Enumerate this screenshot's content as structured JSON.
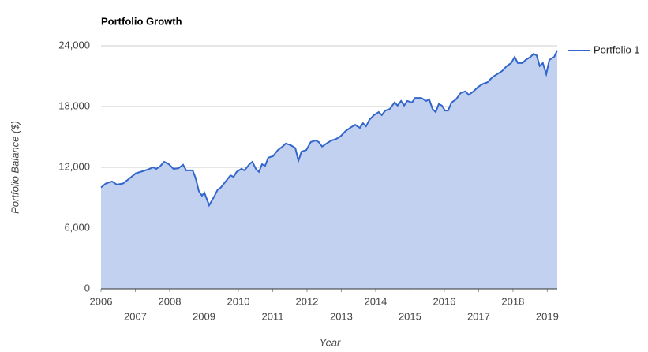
{
  "chart_data": {
    "type": "area",
    "title": "Portfolio Growth",
    "xlabel": "Year",
    "ylabel": "Portfolio Balance ($)",
    "x": [
      2006.0,
      2006.14,
      2006.32,
      2006.46,
      2006.64,
      2006.83,
      2007.01,
      2007.2,
      2007.38,
      2007.52,
      2007.61,
      2007.72,
      2007.84,
      2007.98,
      2008.11,
      2008.25,
      2008.39,
      2008.48,
      2008.67,
      2008.76,
      2008.85,
      2008.94,
      2009.01,
      2009.15,
      2009.31,
      2009.4,
      2009.49,
      2009.63,
      2009.77,
      2009.86,
      2009.95,
      2010.09,
      2010.18,
      2010.32,
      2010.41,
      2010.51,
      2010.6,
      2010.69,
      2010.78,
      2010.87,
      2011.01,
      2011.15,
      2011.29,
      2011.38,
      2011.52,
      2011.66,
      2011.75,
      2011.84,
      2011.98,
      2012.11,
      2012.25,
      2012.34,
      2012.44,
      2012.57,
      2012.71,
      2012.85,
      2012.99,
      2013.13,
      2013.26,
      2013.4,
      2013.54,
      2013.63,
      2013.72,
      2013.82,
      2013.95,
      2014.09,
      2014.18,
      2014.28,
      2014.41,
      2014.55,
      2014.64,
      2014.74,
      2014.83,
      2014.92,
      2015.06,
      2015.15,
      2015.33,
      2015.47,
      2015.56,
      2015.66,
      2015.75,
      2015.84,
      2015.93,
      2016.02,
      2016.11,
      2016.21,
      2016.34,
      2016.48,
      2016.62,
      2016.71,
      2016.85,
      2016.99,
      2017.13,
      2017.26,
      2017.4,
      2017.54,
      2017.68,
      2017.82,
      2017.95,
      2018.05,
      2018.14,
      2018.28,
      2018.37,
      2018.51,
      2018.6,
      2018.69,
      2018.78,
      2018.87,
      2018.97,
      2019.06,
      2019.2,
      2019.29
    ],
    "series": [
      {
        "name": "Portfolio 1",
        "color": "#3366cc",
        "fill": "#c2d1f0",
        "values": [
          10000,
          10400,
          10600,
          10300,
          10400,
          10900,
          11400,
          11600,
          11800,
          12000,
          11850,
          12100,
          12550,
          12300,
          11850,
          11900,
          12250,
          11700,
          11700,
          10900,
          9650,
          9200,
          9500,
          8250,
          9200,
          9800,
          10000,
          10600,
          11200,
          11050,
          11550,
          11850,
          11700,
          12300,
          12550,
          11850,
          11550,
          12300,
          12150,
          12950,
          13100,
          13700,
          14050,
          14350,
          14200,
          13900,
          12650,
          13550,
          13700,
          14500,
          14650,
          14500,
          14050,
          14350,
          14650,
          14800,
          15100,
          15600,
          15900,
          16200,
          15900,
          16350,
          16050,
          16700,
          17150,
          17450,
          17150,
          17600,
          17750,
          18400,
          18100,
          18550,
          18100,
          18550,
          18400,
          18850,
          18850,
          18550,
          18700,
          17750,
          17450,
          18250,
          18100,
          17600,
          17600,
          18400,
          18700,
          19350,
          19500,
          19150,
          19500,
          19950,
          20250,
          20400,
          20900,
          21200,
          21500,
          22000,
          22300,
          22900,
          22300,
          22300,
          22600,
          22900,
          23200,
          23050,
          22000,
          22300,
          21200,
          22600,
          22900,
          23550
        ]
      }
    ],
    "xlim": [
      2006,
      2019.29
    ],
    "xticks": [
      2006,
      2007,
      2008,
      2009,
      2010,
      2011,
      2012,
      2013,
      2014,
      2015,
      2016,
      2017,
      2018,
      2019
    ],
    "ylim": [
      0,
      24000
    ],
    "yticks": [
      0,
      {
        "value": 6000,
        "label": "6,000"
      },
      {
        "value": 12000,
        "label": "12,000"
      },
      {
        "value": 18000,
        "label": "18,000"
      },
      {
        "value": 24000,
        "label": "24,000"
      }
    ],
    "grid": true,
    "legend": "right"
  }
}
